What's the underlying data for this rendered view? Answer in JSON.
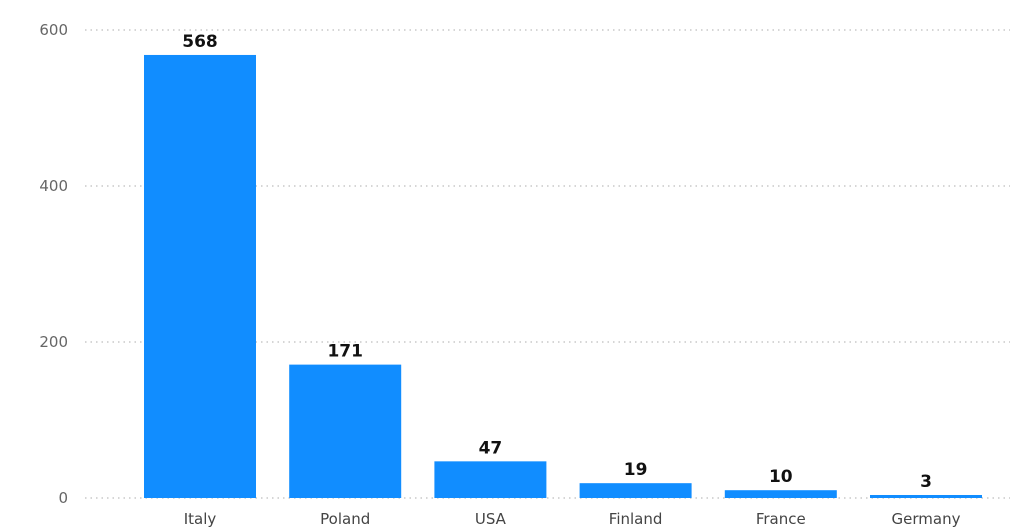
{
  "chart_data": {
    "type": "bar",
    "categories": [
      "Italy",
      "Poland",
      "USA",
      "Finland",
      "France",
      "Germany"
    ],
    "values": [
      568,
      171,
      47,
      19,
      10,
      3
    ],
    "title": "",
    "xlabel": "",
    "ylabel": "",
    "ylim": [
      0,
      600
    ],
    "yticks": [
      "0",
      "200",
      "400",
      "600"
    ],
    "grid": true,
    "data_labels": true,
    "bar_color": "#118DFF"
  }
}
